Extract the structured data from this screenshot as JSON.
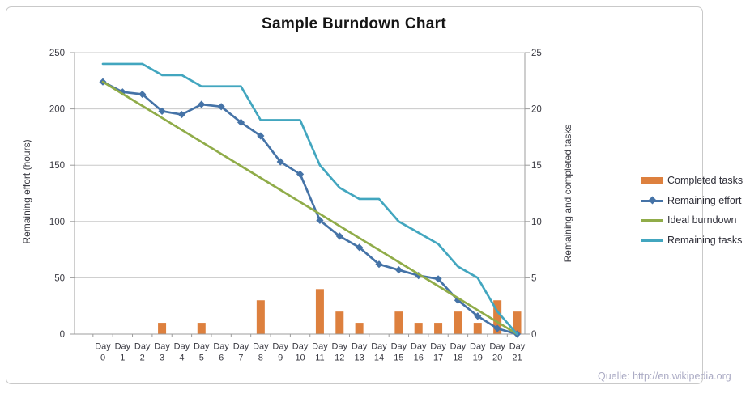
{
  "page": {
    "watermark": "Quelle: http://en.wikipedia.org"
  },
  "chart_data": {
    "type": "combo",
    "title": "Sample Burndown Chart",
    "categories": [
      "Day 0",
      "Day 1",
      "Day 2",
      "Day 3",
      "Day 4",
      "Day 5",
      "Day 6",
      "Day 7",
      "Day 8",
      "Day 9",
      "Day 10",
      "Day 11",
      "Day 12",
      "Day 13",
      "Day 14",
      "Day 15",
      "Day 16",
      "Day 17",
      "Day 18",
      "Day 19",
      "Day 20",
      "Day 21"
    ],
    "axes": {
      "left": {
        "label": "Remaining effort (hours)",
        "min": 0,
        "max": 250,
        "ticks": [
          0,
          50,
          100,
          150,
          200,
          250
        ]
      },
      "right": {
        "label": "Remaining and completed tasks",
        "min": 0,
        "max": 25,
        "ticks": [
          0,
          5,
          10,
          15,
          20,
          25
        ]
      }
    },
    "grid": true,
    "legend_position": "right",
    "series": [
      {
        "name": "Completed tasks",
        "type": "bar",
        "axis": "right",
        "color": "#dd803e",
        "values": [
          0,
          0,
          0,
          1,
          0,
          1,
          0,
          0,
          3,
          0,
          0,
          4,
          2,
          1,
          0,
          2,
          1,
          1,
          2,
          1,
          3,
          2
        ]
      },
      {
        "name": "Remaining effort",
        "type": "line",
        "marker": "diamond",
        "axis": "left",
        "color": "#4573a7",
        "values": [
          224,
          215,
          213,
          198,
          195,
          204,
          202,
          188,
          176,
          153,
          142,
          101,
          87,
          77,
          62,
          57,
          52,
          49,
          30,
          16,
          5,
          0
        ]
      },
      {
        "name": "Ideal burndown",
        "type": "line",
        "axis": "left",
        "color": "#90ac49",
        "values": [
          224,
          213.3,
          202.7,
          192,
          181.3,
          170.7,
          160,
          149.3,
          138.7,
          128,
          117.3,
          106.7,
          96,
          85.3,
          74.7,
          64,
          53.3,
          42.7,
          32,
          21.3,
          10.7,
          0
        ]
      },
      {
        "name": "Remaining tasks",
        "type": "line",
        "axis": "right",
        "color": "#42a6bf",
        "values": [
          24,
          24,
          24,
          23,
          23,
          22,
          22,
          22,
          19,
          19,
          19,
          15,
          13,
          12,
          12,
          10,
          9,
          8,
          6,
          5,
          2,
          0
        ]
      }
    ]
  }
}
